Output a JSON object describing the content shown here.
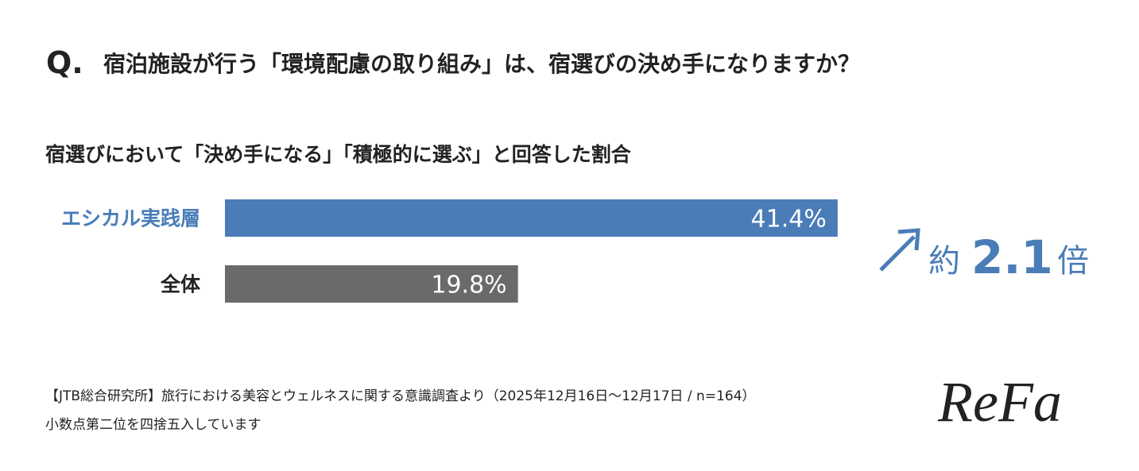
{
  "chart_data": {
    "type": "bar",
    "orientation": "horizontal",
    "title_prefix": "Q.",
    "title": "宿泊施設が行う「環境配慮の取り組み」は、宿選びの決め手になりますか？",
    "subtitle": "宿選びにおいて「決め手になる」「積極的に選ぶ」と回答した割合",
    "categories": [
      "エシカル実践層",
      "全体"
    ],
    "values": [
      41.4,
      19.8
    ],
    "value_labels": [
      "41.4%",
      "19.8%"
    ],
    "colors": [
      "#4a7db8",
      "#6a6a6a"
    ],
    "category_colors": [
      "#4a7db8",
      "#222222"
    ],
    "annotation": [
      "約",
      "2.1",
      "倍"
    ],
    "source": "【JTB総合研究所】旅行における美容とウェルネスに関する意識調査より（2025年12月16日〜12月17日 / n=164）",
    "note": "小数点第二位を四捨五入しています",
    "logo": "ReFa"
  }
}
